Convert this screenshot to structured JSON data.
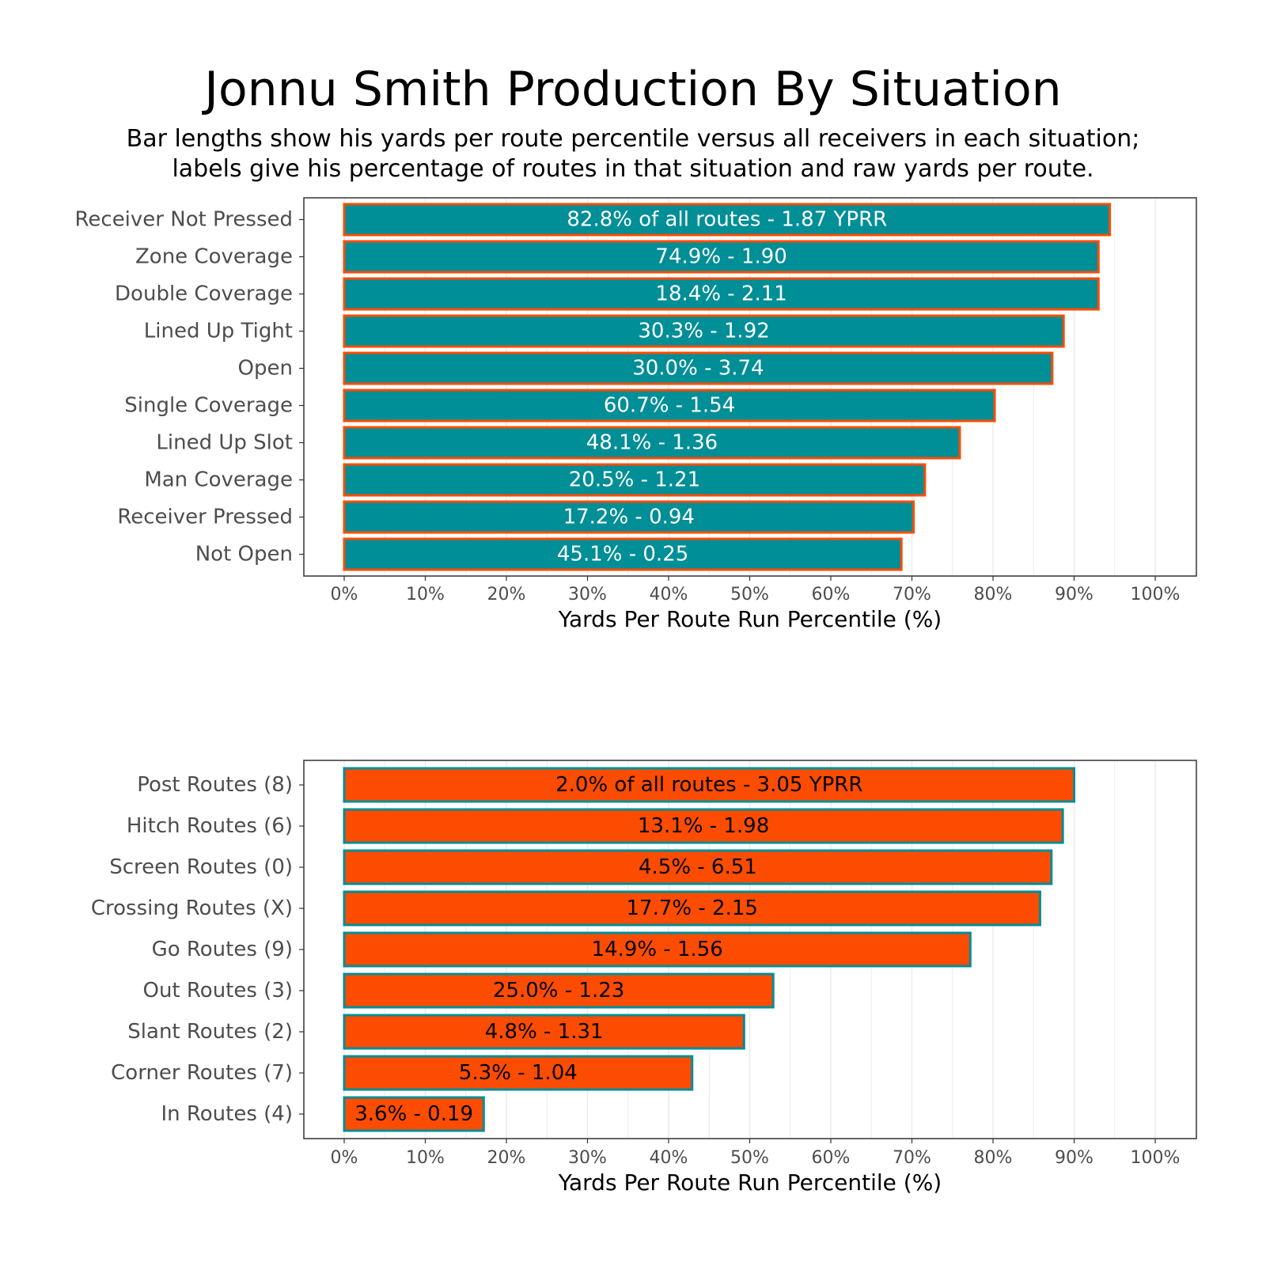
{
  "title": "Jonnu Smith Production By Situation",
  "subtitle_lines": [
    "Bar lengths show his yards per route percentile versus all receivers in each situation;",
    "labels give his percentage of routes in that situation and raw yards per route."
  ],
  "colors": {
    "teal": "#008e97",
    "orange": "#fc4c02",
    "grid": "#ebebeb",
    "border": "#333333"
  },
  "chart_data": [
    {
      "type": "bar",
      "orientation": "horizontal",
      "xlabel": "Yards Per Route Run Percentile (%)",
      "xlim": [
        0,
        100
      ],
      "x_ticks": [
        "0%",
        "10%",
        "20%",
        "30%",
        "40%",
        "50%",
        "60%",
        "70%",
        "80%",
        "90%",
        "100%"
      ],
      "categories": [
        "Receiver Not Pressed",
        "Zone Coverage",
        "Double Coverage",
        "Lined Up Tight",
        "Open",
        "Single Coverage",
        "Lined Up Slot",
        "Man Coverage",
        "Receiver Pressed",
        "Not Open"
      ],
      "values": [
        94.4,
        93,
        93,
        88.7,
        87.3,
        80.2,
        75.9,
        71.6,
        70.2,
        68.7
      ],
      "labels": [
        "82.8% of all routes - 1.87 YPRR",
        "74.9% - 1.90",
        "18.4% - 2.11",
        "30.3% - 1.92",
        "30.0% - 3.74",
        "60.7% - 1.54",
        "48.1% - 1.36",
        "20.5% - 1.21",
        "17.2% - 0.94",
        "45.1% - 0.25"
      ],
      "fill": "#008e97",
      "outline": "#fc4c02",
      "label_color": "#ffffff"
    },
    {
      "type": "bar",
      "orientation": "horizontal",
      "xlabel": "Yards Per Route Run Percentile (%)",
      "xlim": [
        0,
        100
      ],
      "x_ticks": [
        "0%",
        "10%",
        "20%",
        "30%",
        "40%",
        "50%",
        "60%",
        "70%",
        "80%",
        "90%",
        "100%"
      ],
      "categories": [
        "Post Routes (8)",
        "Hitch Routes (6)",
        "Screen Routes (0)",
        "Crossing Routes (X)",
        "Go Routes (9)",
        "Out Routes (3)",
        "Slant Routes (2)",
        "Corner Routes (7)",
        "In Routes (4)"
      ],
      "values": [
        90,
        88.6,
        87.2,
        85.8,
        77.2,
        52.9,
        49.3,
        42.9,
        17.2
      ],
      "labels": [
        "2.0% of all routes - 3.05 YPRR",
        "13.1% - 1.98",
        "4.5% - 6.51",
        "17.7% - 2.15",
        "14.9% - 1.56",
        "25.0% - 1.23",
        "4.8% - 1.31",
        "5.3% - 1.04",
        "3.6% - 0.19"
      ],
      "fill": "#fc4c02",
      "outline": "#008e97",
      "label_color": "#000000"
    }
  ]
}
